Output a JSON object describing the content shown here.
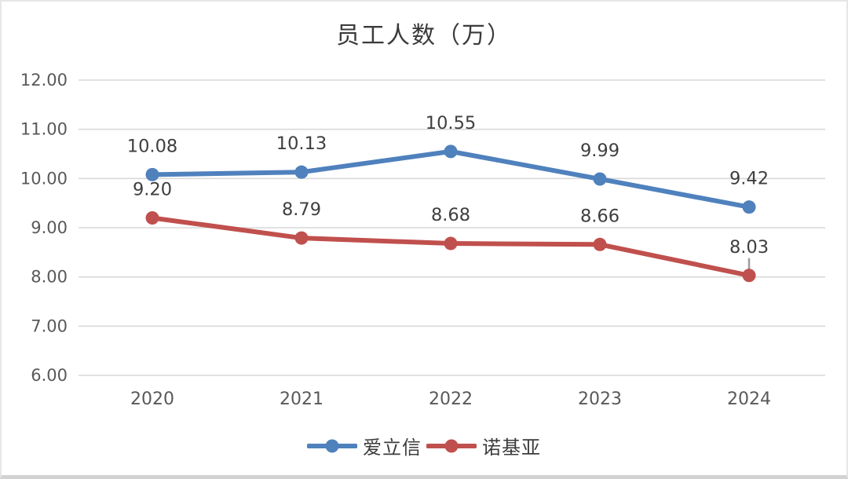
{
  "chart_data": {
    "type": "line",
    "title": "员工人数（万）",
    "categories": [
      "2020",
      "2021",
      "2022",
      "2023",
      "2024"
    ],
    "series": [
      {
        "name": "爱立信",
        "color": "#4f81bd",
        "values": [
          10.08,
          10.13,
          10.55,
          9.99,
          9.42
        ],
        "labels": [
          "10.08",
          "10.13",
          "10.55",
          "9.99",
          "9.42"
        ]
      },
      {
        "name": "诺基亚",
        "color": "#c0504d",
        "values": [
          9.2,
          8.79,
          8.68,
          8.66,
          8.03
        ],
        "labels": [
          "9.20",
          "8.79",
          "8.68",
          "8.66",
          "8.03"
        ]
      }
    ],
    "ylim": [
      6,
      12
    ],
    "ytick_labels": [
      "6.00",
      "7.00",
      "8.00",
      "9.00",
      "10.00",
      "11.00",
      "12.00"
    ],
    "grid": "horizontal-only",
    "gridline_color": "#d9d9d9",
    "axis_text_color": "#595959",
    "data_label_color": "#3f3f3f",
    "legend_position": "bottom",
    "annotation": {
      "note": "small gray tick artifact above last point of 诺基亚 series",
      "series": "诺基亚",
      "category": "2024",
      "tick_color": "#9b9b9b"
    }
  }
}
